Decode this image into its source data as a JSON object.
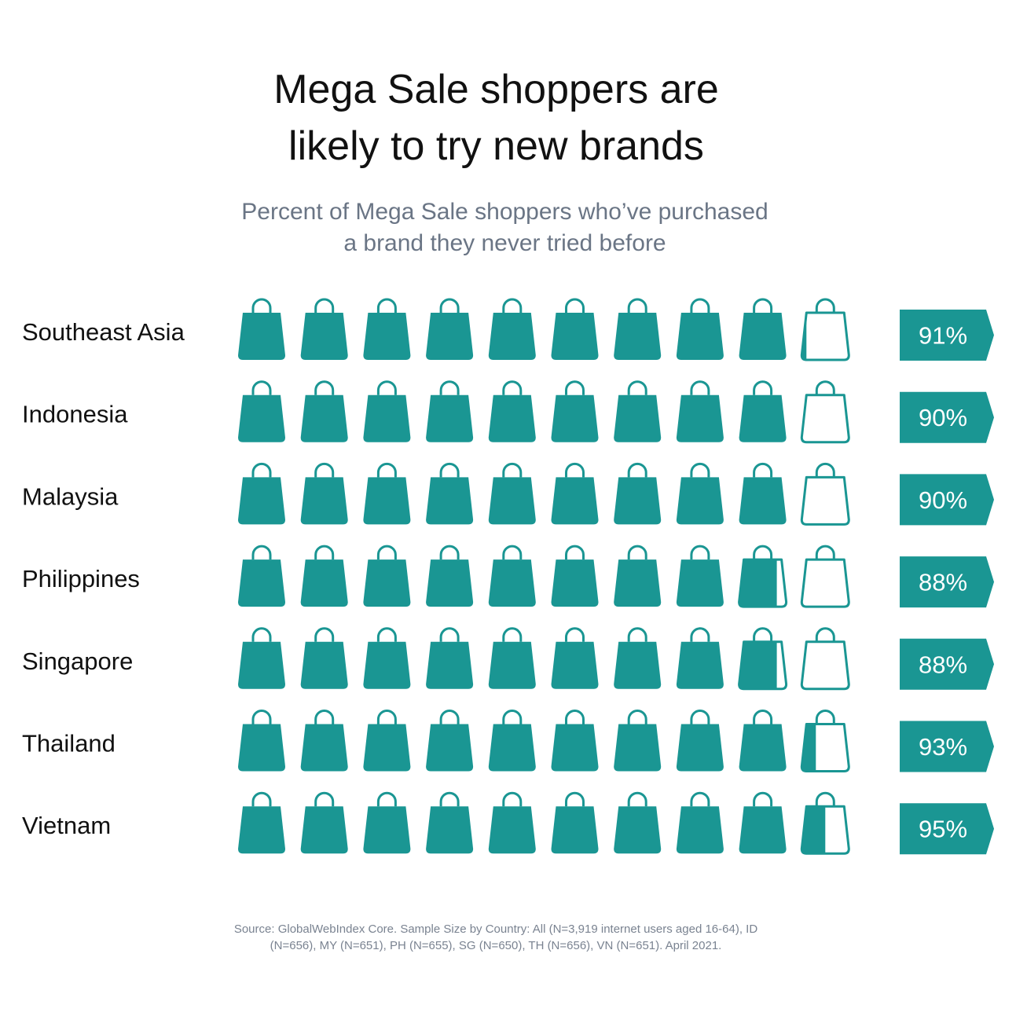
{
  "title": [
    "Mega Sale shoppers are",
    "likely to try new brands"
  ],
  "subtitle": [
    "Percent of Mega Sale shoppers who’ve purchased",
    "a brand they never tried before"
  ],
  "colors": {
    "bag": "#1a9693",
    "empty_fill": "#ffffff",
    "text": "#111111",
    "subtitle": "#6a7585",
    "source": "#7a8391"
  },
  "icon": "shopping-bag-icon",
  "chart_data": {
    "type": "pictograph",
    "icons_per_row": 10,
    "units_per_icon": 10,
    "categories": [
      "Southeast Asia",
      "Indonesia",
      "Malaysia",
      "Philippines",
      "Singapore",
      "Thailand",
      "Vietnam"
    ],
    "values": [
      91,
      90,
      90,
      88,
      88,
      93,
      95
    ],
    "value_labels": [
      "91%",
      "90%",
      "90%",
      "88%",
      "88%",
      "93%",
      "95%"
    ]
  },
  "source": [
    "Source: GlobalWebIndex Core. Sample Size by Country: All (N=3,919 internet users aged 16-64), ID",
    "(N=656), MY (N=651), PH (N=655), SG (N=650), TH (N=656), VN (N=651). April 2021."
  ]
}
